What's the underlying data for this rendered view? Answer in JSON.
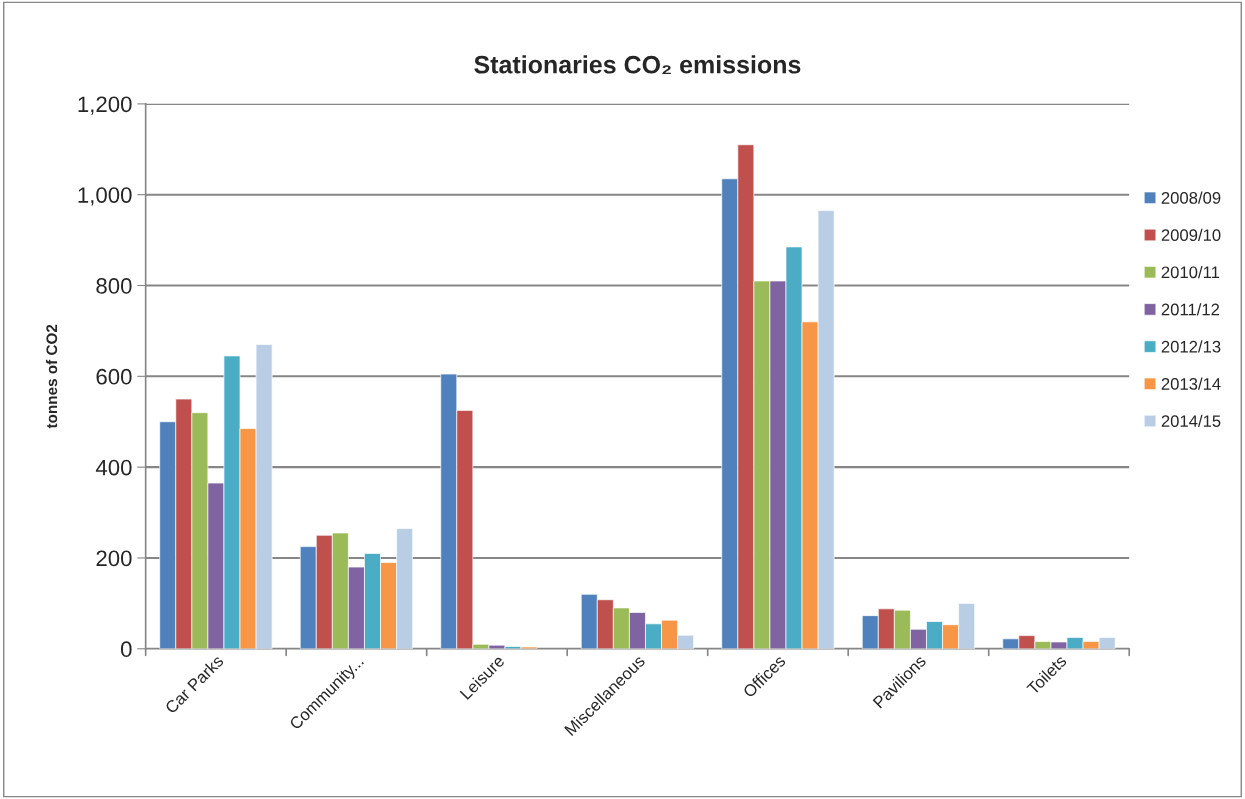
{
  "chart_data": {
    "type": "bar",
    "title": "Stationaries CO₂ emissions",
    "ylabel": "tonnes of CO2",
    "categories": [
      "Car Parks",
      "Community...",
      "Leisure",
      "Miscellaneous",
      "Offices",
      "Pavilions",
      "Toilets"
    ],
    "series": [
      {
        "name": "2008/09",
        "color": "#4f81bd",
        "values": [
          500,
          225,
          605,
          120,
          1035,
          73,
          22
        ]
      },
      {
        "name": "2009/10",
        "color": "#c0504d",
        "values": [
          550,
          250,
          525,
          108,
          1110,
          88,
          29
        ]
      },
      {
        "name": "2010/11",
        "color": "#9bbb59",
        "values": [
          520,
          255,
          10,
          90,
          810,
          85,
          16
        ]
      },
      {
        "name": "2011/12",
        "color": "#8064a2",
        "values": [
          365,
          180,
          8,
          80,
          810,
          43,
          15
        ]
      },
      {
        "name": "2012/13",
        "color": "#4bacc6",
        "values": [
          645,
          210,
          5,
          55,
          885,
          60,
          25
        ]
      },
      {
        "name": "2013/14",
        "color": "#f79646",
        "values": [
          485,
          190,
          4,
          63,
          720,
          53,
          16
        ]
      },
      {
        "name": "2014/15",
        "color": "#b9cde5",
        "values": [
          670,
          265,
          null,
          30,
          965,
          100,
          25
        ]
      }
    ],
    "ylim": [
      0,
      1200
    ],
    "yticks": [
      0,
      200,
      400,
      600,
      800,
      {
        "value": 1000,
        "label": "1,000"
      },
      {
        "value": 1200,
        "label": "1,200"
      }
    ],
    "grid": "y",
    "legend": "right"
  }
}
